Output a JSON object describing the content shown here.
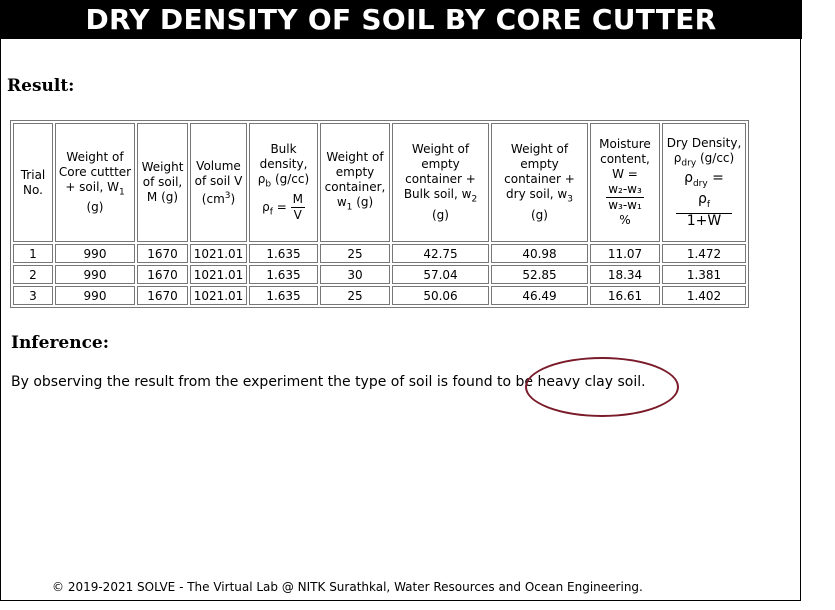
{
  "page": {
    "title": "DRY DENSITY OF SOIL BY CORE CUTTER",
    "result_heading": "Result:",
    "inference_heading": "Inference:",
    "inference_text": "By observing the result from the experiment the type of soil is found to be heavy clay soil.",
    "footer": "© 2019-2021 SOLVE - The Virtual Lab @ NITK Surathkal, Water Resources and Ocean Engineering.",
    "highlight_color": "#7a1b2a"
  },
  "table": {
    "headers": {
      "trial": "Trial No.",
      "core_weight": "Weight of Core cuttter + soil, W",
      "core_weight_sub": "1",
      "core_weight_unit": "(g)",
      "soil_weight": "Weight of soil, M (g)",
      "volume": "Volume of soil V",
      "volume_unit": "(cm",
      "volume_exp": "3",
      "bulk": "Bulk density,",
      "bulk_sym": "ρ",
      "bulk_sub": "b",
      "bulk_unit": "(g/cc)",
      "bulk_formula_lhs": "ρ",
      "bulk_formula_sub": "f",
      "bulk_formula_num": "M",
      "bulk_formula_den": "V",
      "empty_container": "Weight of empty container, w",
      "empty_container_sub": "1",
      "empty_container_unit": "(g)",
      "bulk_soil": "Weight of empty container + Bulk soil, w",
      "bulk_soil_sub": "2",
      "bulk_soil_unit": "(g)",
      "dry_soil": "Weight of empty container + dry soil, w",
      "dry_soil_sub": "3",
      "dry_soil_unit": "(g)",
      "moisture": "Moisture content,",
      "moisture_w": "W =",
      "moisture_num": "w₂-w₃",
      "moisture_den": "w₃-w₁",
      "moisture_unit": "%",
      "dry_density": "Dry Density,",
      "dry_sym": "ρ",
      "dry_sub": "dry",
      "dry_unit": "(g/cc)",
      "dry_formula_num": "ρ",
      "dry_formula_num_sub": "f",
      "dry_formula_den": "1+W"
    },
    "rows": [
      [
        "1",
        "990",
        "1670",
        "1021.01",
        "1.635",
        "25",
        "42.75",
        "40.98",
        "11.07",
        "1.472"
      ],
      [
        "2",
        "990",
        "1670",
        "1021.01",
        "1.635",
        "30",
        "57.04",
        "52.85",
        "18.34",
        "1.381"
      ],
      [
        "3",
        "990",
        "1670",
        "1021.01",
        "1.635",
        "25",
        "50.06",
        "46.49",
        "16.61",
        "1.402"
      ]
    ]
  }
}
